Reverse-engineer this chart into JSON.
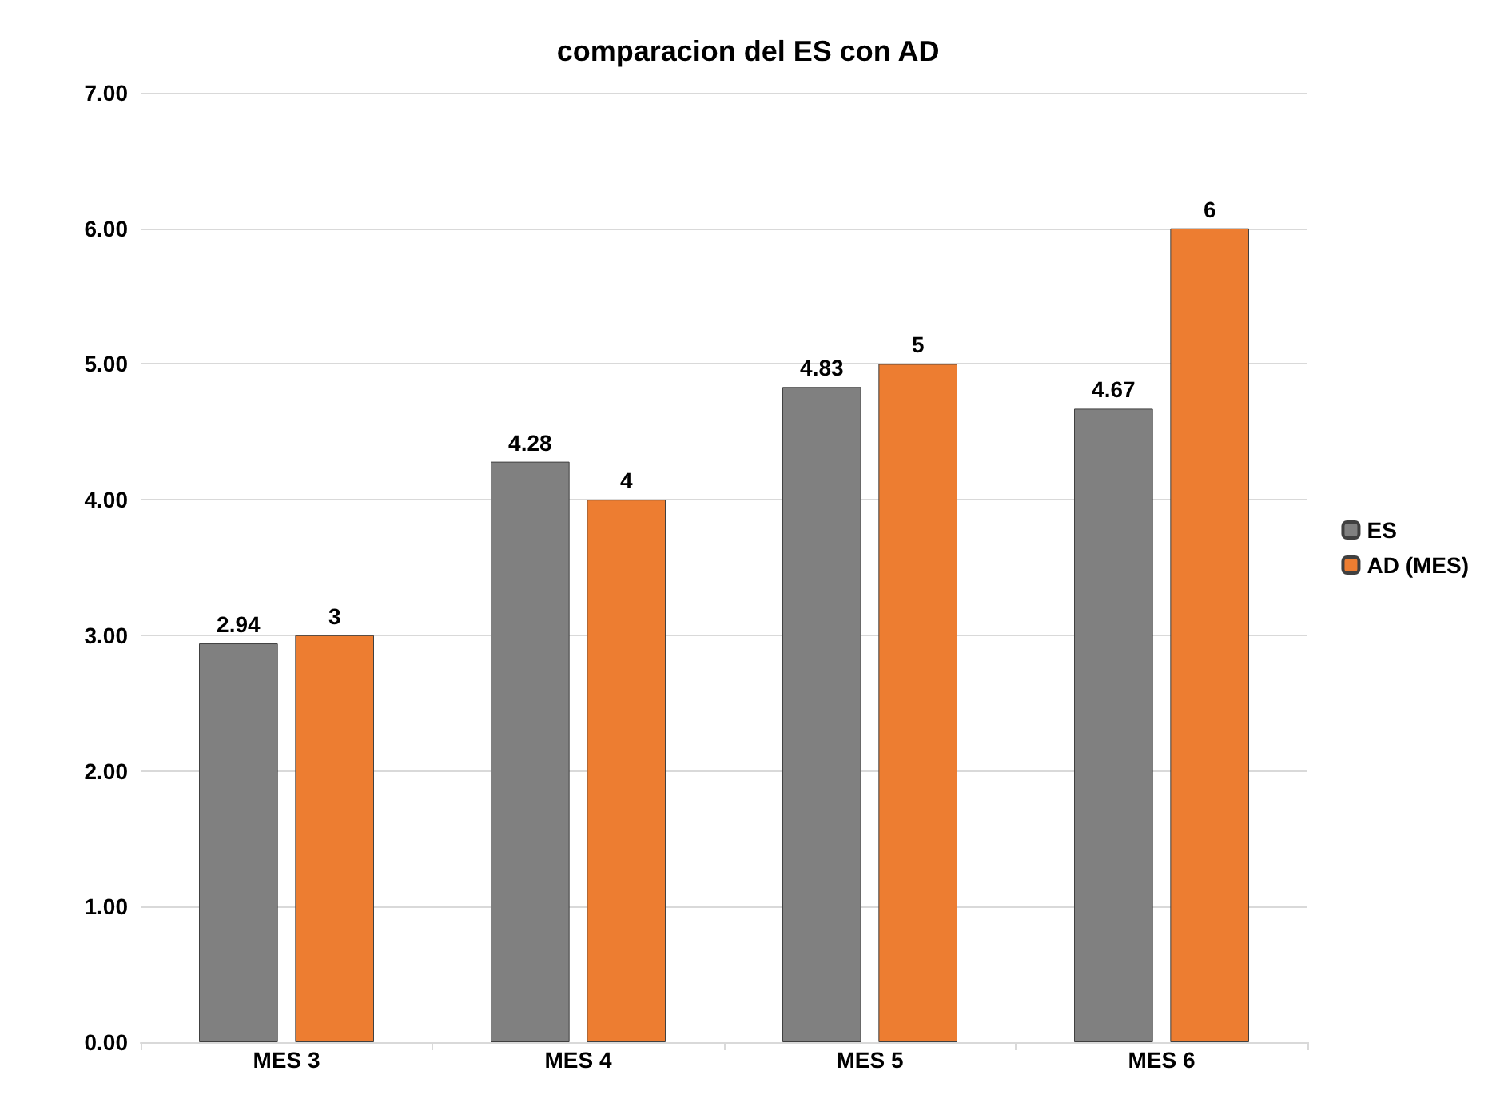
{
  "chart_data": {
    "type": "bar",
    "title": "comparacion del ES con AD",
    "categories": [
      "MES 3",
      "MES 4",
      "MES 5",
      "MES 6"
    ],
    "series": [
      {
        "name": "ES",
        "color": "#808080",
        "values": [
          2.94,
          4.28,
          4.83,
          4.67
        ]
      },
      {
        "name": "AD (MES)",
        "color": "#ed7d31",
        "values": [
          3,
          4,
          5,
          6
        ]
      }
    ],
    "ylim": [
      0,
      7
    ],
    "yticks": [
      {
        "value": 0,
        "label": "0.00"
      },
      {
        "value": 1,
        "label": "1.00"
      },
      {
        "value": 2,
        "label": "2.00"
      },
      {
        "value": 3,
        "label": "3.00"
      },
      {
        "value": 4,
        "label": "4.00"
      },
      {
        "value": 5,
        "label": "5.00"
      },
      {
        "value": 6,
        "label": "6.00"
      },
      {
        "value": 7,
        "label": "7.00"
      }
    ],
    "grid": "y",
    "legend": "right",
    "data_labels": true
  }
}
